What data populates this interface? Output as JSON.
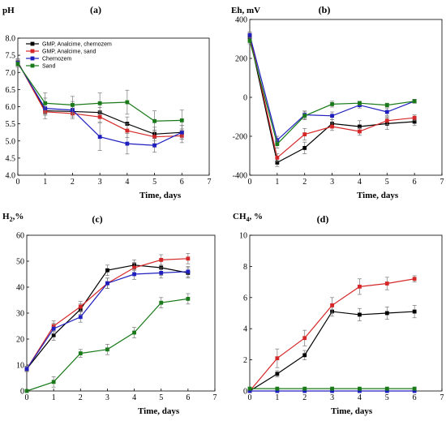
{
  "chart_data": [
    {
      "type": "line",
      "panel_label": "(a)",
      "ylabel": "pH",
      "xlabel": "Time, days",
      "xlim": [
        0,
        7
      ],
      "ylim": [
        4.0,
        8.0
      ],
      "xticks": [
        0,
        1,
        2,
        3,
        4,
        5,
        6,
        7
      ],
      "yticks": [
        "4.0",
        "4.5",
        "5.0",
        "5.5",
        "6.0",
        "6.5",
        "7.0",
        "7.5",
        "8.0"
      ],
      "legend_position": "top-left",
      "x": [
        0,
        1,
        2,
        3,
        4,
        5,
        6
      ],
      "series": [
        {
          "name": "GMP, Analcime, chernozem",
          "color": "#000000",
          "values": [
            7.3,
            5.88,
            5.86,
            5.83,
            5.5,
            5.2,
            5.25
          ],
          "errors": [
            0.1,
            0.1,
            0.1,
            0.15,
            0.2,
            0.2,
            0.2
          ]
        },
        {
          "name": "GMP, Analcime, sand",
          "color": "#d62728",
          "values": [
            7.3,
            5.85,
            5.8,
            5.7,
            5.3,
            5.12,
            5.15
          ],
          "errors": [
            0.1,
            0.1,
            0.1,
            0.15,
            0.2,
            0.2,
            0.2
          ]
        },
        {
          "name": "Chernozem",
          "color": "#1f1fbf",
          "values": [
            7.28,
            5.95,
            5.9,
            5.12,
            4.92,
            4.87,
            5.25
          ],
          "errors": [
            0.1,
            0.3,
            0.25,
            0.4,
            0.3,
            0.2,
            0.2
          ]
        },
        {
          "name": "Sand",
          "color": "#1a7a1a",
          "values": [
            7.25,
            6.1,
            6.05,
            6.1,
            6.13,
            5.58,
            5.6
          ],
          "errors": [
            0.1,
            0.3,
            0.25,
            0.3,
            0.35,
            0.3,
            0.3
          ]
        }
      ]
    },
    {
      "type": "line",
      "panel_label": "(b)",
      "ylabel": "Eh, mV",
      "xlabel": "Time, days",
      "xlim": [
        0,
        7
      ],
      "ylim": [
        -400,
        400
      ],
      "xticks": [
        0,
        1,
        2,
        3,
        4,
        5,
        6,
        7
      ],
      "yticks": [
        "-400",
        "-200",
        "0",
        "200",
        "400"
      ],
      "x": [
        0,
        1,
        2,
        3,
        4,
        5,
        6
      ],
      "series": [
        {
          "color": "#000000",
          "values": [
            310,
            -335,
            -260,
            -135,
            -150,
            -135,
            -125
          ],
          "errors": [
            15,
            20,
            30,
            20,
            30,
            30,
            20
          ]
        },
        {
          "color": "#d62728",
          "values": [
            320,
            -310,
            -190,
            -150,
            -175,
            -120,
            -105
          ],
          "errors": [
            15,
            20,
            30,
            20,
            20,
            20,
            15
          ]
        },
        {
          "color": "#1f1fbf",
          "values": [
            320,
            -220,
            -90,
            -95,
            -40,
            -75,
            -20
          ],
          "errors": [
            15,
            20,
            20,
            20,
            15,
            20,
            10
          ]
        },
        {
          "color": "#1a7a1a",
          "values": [
            290,
            -240,
            -95,
            -35,
            -30,
            -40,
            -20
          ],
          "errors": [
            15,
            20,
            20,
            15,
            10,
            10,
            10
          ]
        }
      ]
    },
    {
      "type": "line",
      "panel_label": "(c)",
      "ylabel_main": "H",
      "ylabel_sub": "2",
      "ylabel_suffix": ",%",
      "xlabel": "Time, days",
      "xlim": [
        0,
        7
      ],
      "ylim": [
        0,
        60
      ],
      "xticks": [
        0,
        1,
        2,
        3,
        4,
        5,
        6,
        7
      ],
      "yticks": [
        "0",
        "10",
        "20",
        "30",
        "40",
        "50",
        "60"
      ],
      "x": [
        0,
        1,
        2,
        3,
        4,
        5,
        6
      ],
      "series": [
        {
          "color": "#000000",
          "values": [
            8.5,
            21.5,
            31.5,
            46.5,
            48.5,
            47.5,
            45.5
          ],
          "errors": [
            1,
            2,
            2,
            2,
            2,
            3,
            2
          ]
        },
        {
          "color": "#d62728",
          "values": [
            8.5,
            25,
            32.5,
            41.5,
            47.5,
            50.5,
            51
          ],
          "errors": [
            1,
            2,
            2,
            2,
            2,
            2,
            2
          ]
        },
        {
          "color": "#1f1fbf",
          "values": [
            8.5,
            24,
            28.5,
            41.5,
            45,
            45.5,
            46
          ],
          "errors": [
            1,
            2,
            2,
            2,
            2,
            2,
            2
          ]
        },
        {
          "color": "#1a7a1a",
          "values": [
            0,
            3.5,
            14.5,
            16,
            22.5,
            34,
            35.5
          ],
          "errors": [
            0.5,
            2,
            1.5,
            2,
            2,
            2,
            2
          ]
        }
      ]
    },
    {
      "type": "line",
      "panel_label": "(d)",
      "ylabel_main": "CH",
      "ylabel_sub": "4",
      "ylabel_suffix": ", %",
      "xlabel": "Time, days",
      "xlim": [
        0,
        7
      ],
      "ylim": [
        0,
        10
      ],
      "xticks": [
        0,
        1,
        2,
        3,
        4,
        5,
        6,
        7
      ],
      "yticks": [
        "0",
        "2",
        "4",
        "6",
        "8",
        "10"
      ],
      "x": [
        0,
        1,
        2,
        3,
        4,
        5,
        6
      ],
      "series": [
        {
          "color": "#000000",
          "values": [
            0,
            1.1,
            2.3,
            5.1,
            4.9,
            5.0,
            5.1
          ],
          "errors": [
            0.05,
            0.2,
            0.3,
            0.3,
            0.4,
            0.4,
            0.4
          ]
        },
        {
          "color": "#d62728",
          "values": [
            0,
            2.1,
            3.4,
            5.5,
            6.7,
            6.9,
            7.2
          ],
          "errors": [
            0.05,
            0.6,
            0.5,
            0.5,
            0.5,
            0.4,
            0.2
          ]
        },
        {
          "color": "#1f1fbf",
          "values": [
            0,
            0,
            0,
            0,
            0,
            0,
            0
          ],
          "errors": [
            0,
            0,
            0,
            0,
            0,
            0,
            0
          ]
        },
        {
          "color": "#1a7a1a",
          "values": [
            0.15,
            0.15,
            0.15,
            0.15,
            0.15,
            0.15,
            0.15
          ],
          "errors": [
            0,
            0,
            0,
            0,
            0,
            0,
            0
          ]
        }
      ]
    }
  ]
}
